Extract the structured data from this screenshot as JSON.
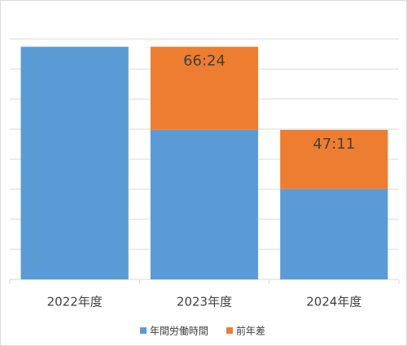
{
  "chart_data": {
    "type": "stacked_bar",
    "categories": [
      "2022年度",
      "2023年度",
      "2024年度"
    ],
    "series": [
      {
        "name": "年間労働時間",
        "color": "#5b9bd5",
        "values": [
          185.8,
          119.4,
          72.2
        ]
      },
      {
        "name": "前年差",
        "color": "#ed7d31",
        "values": [
          null,
          66.4,
          47.18
        ],
        "value_labels": [
          null,
          "66:24",
          "47:11"
        ]
      }
    ],
    "ylim": [
      0,
      192
    ],
    "yticks": [
      0,
      24,
      48,
      72,
      96,
      120,
      144,
      168,
      192
    ],
    "grid": true,
    "legend": "bottom"
  }
}
